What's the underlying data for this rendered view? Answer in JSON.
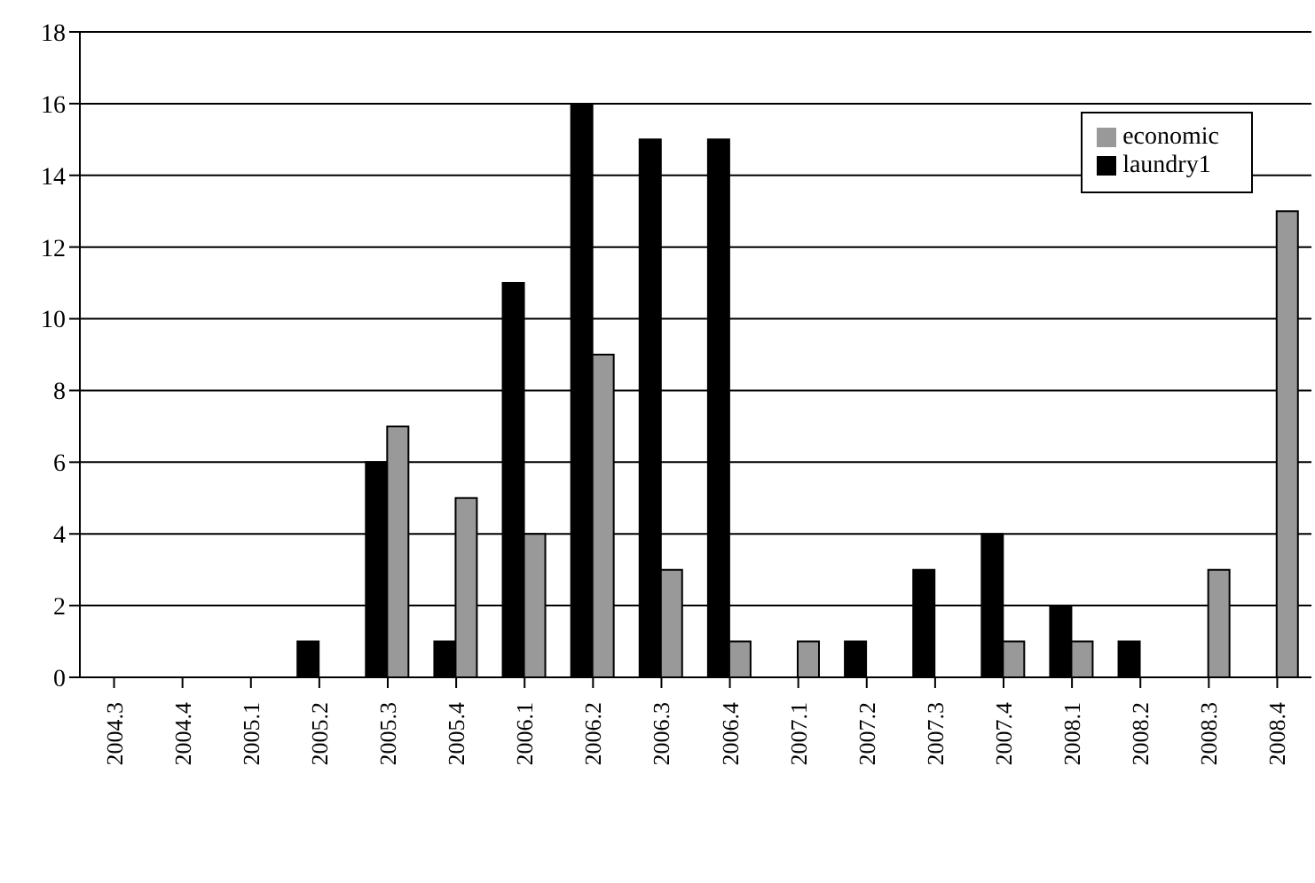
{
  "chart_data": {
    "type": "bar",
    "categories": [
      "2004.3",
      "2004.4",
      "2005.1",
      "2005.2",
      "2005.3",
      "2005.4",
      "2006.1",
      "2006.2",
      "2006.3",
      "2006.4",
      "2007.1",
      "2007.2",
      "2007.3",
      "2007.4",
      "2008.1",
      "2008.2",
      "2008.3",
      "2008.4"
    ],
    "series": [
      {
        "name": "laundry1",
        "color": "#000000",
        "values": [
          0,
          0,
          0,
          1,
          6,
          1,
          11,
          16,
          15,
          15,
          0,
          1,
          3,
          4,
          2,
          1,
          0,
          0
        ]
      },
      {
        "name": "economic",
        "color": "#999999",
        "values": [
          0,
          0,
          0,
          0,
          7,
          5,
          4,
          9,
          3,
          1,
          1,
          0,
          0,
          1,
          1,
          0,
          3,
          13
        ]
      }
    ],
    "ylim": [
      0,
      18
    ],
    "yticks": [
      0,
      2,
      4,
      6,
      8,
      10,
      12,
      14,
      16,
      18
    ],
    "grid": "y",
    "legend": "top right"
  }
}
